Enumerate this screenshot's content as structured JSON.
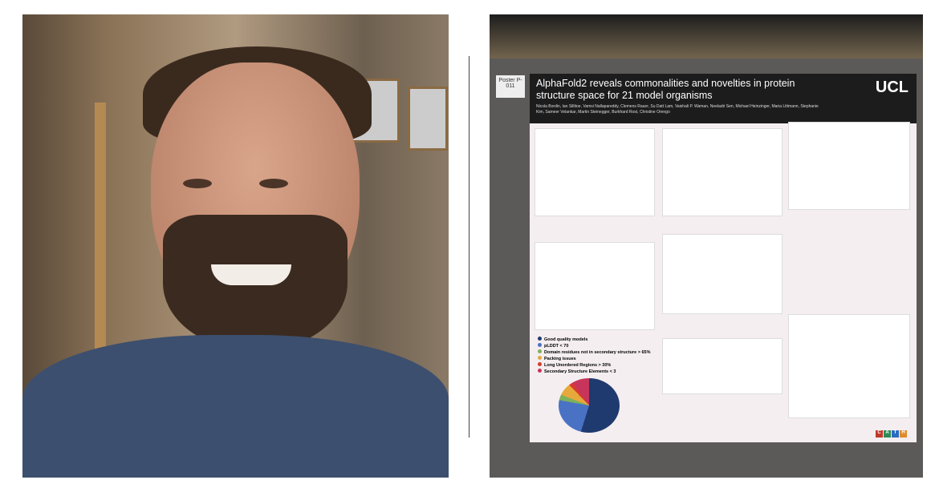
{
  "poster": {
    "label": "Poster P-011",
    "title": "AlphaFold2 reveals commonalities and novelties in protein structure space for 21 model organisms",
    "authors": "Nicola Bordin, Ian Sillitoe, Vamsi Nallapareddy, Clemens Rauer, Su Datt Lam, Vaishali P. Waman, Neeladri Sen, Michael Heinzinger, Maria Littmann, Stephanie Kim, Sameer Velankar, Martin Steinegger, Burkhard Rost, Christine Orengo",
    "logo": "UCL",
    "legend": [
      {
        "label": "Good quality models",
        "color": "#1f3a6e"
      },
      {
        "label": "pLDDT < 70",
        "color": "#4a72c4"
      },
      {
        "label": "Domain residues not in secondary structure > 65%",
        "color": "#7fb05a"
      },
      {
        "label": "Packing issues",
        "color": "#e7a83c"
      },
      {
        "label": "Long Unordered Regions > 30%",
        "color": "#d93a2a"
      },
      {
        "label": "Secondary Structure Elements < 3",
        "color": "#c8355a"
      }
    ],
    "cath_logo": [
      "C",
      "A",
      "T",
      "H"
    ]
  }
}
